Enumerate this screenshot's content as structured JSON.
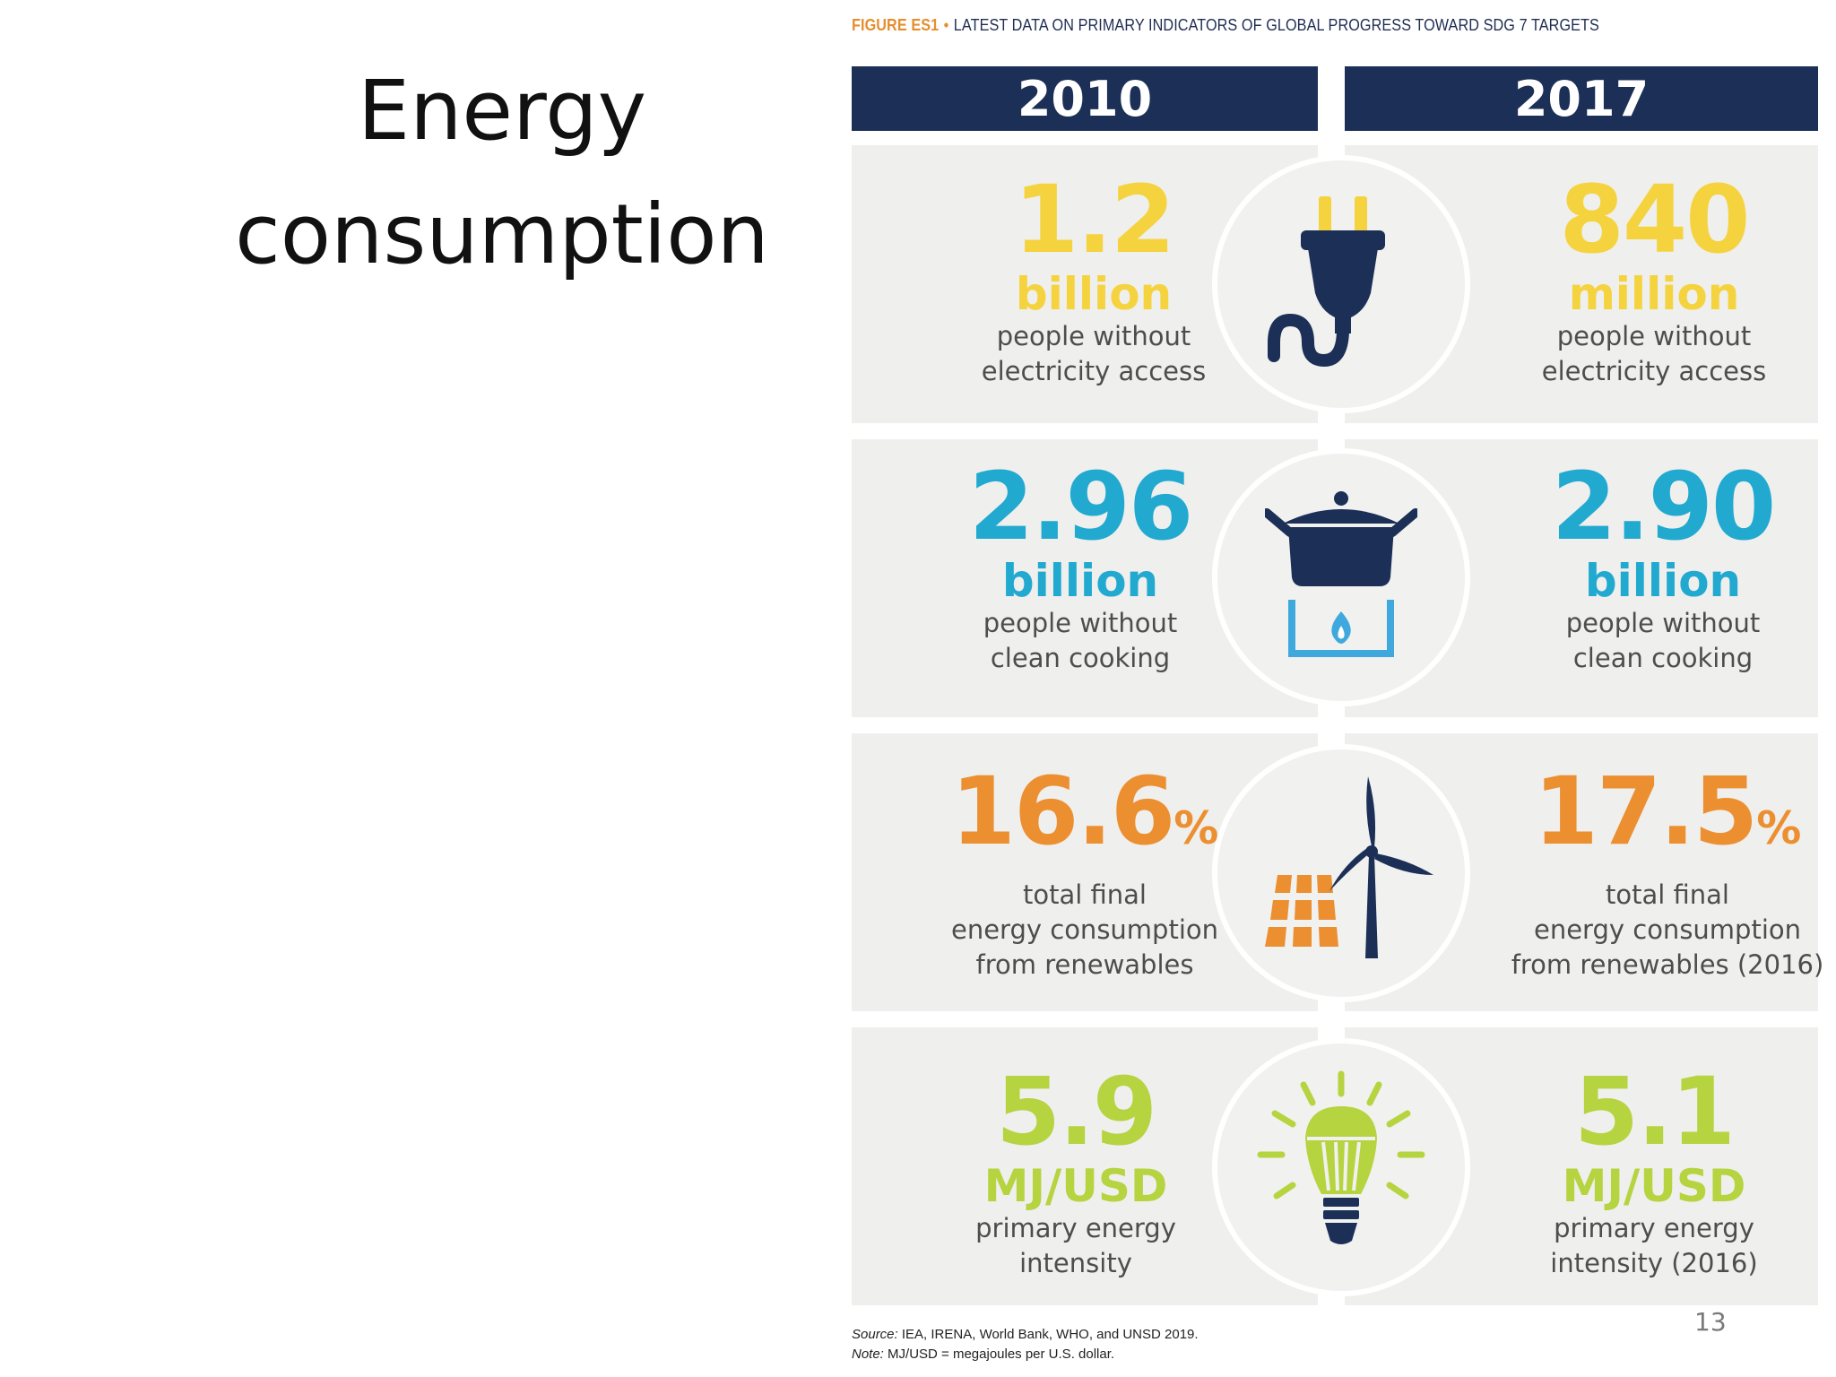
{
  "slide": {
    "title_line1": "Energy",
    "title_line2": "consumption",
    "page_number": "13"
  },
  "figure": {
    "label": "FIGURE ES1",
    "separator": "•",
    "title": "LATEST DATA ON PRIMARY INDICATORS OF GLOBAL PROGRESS TOWARD SDG 7 TARGETS",
    "years": {
      "left": "2010",
      "right": "2017"
    },
    "rows": [
      {
        "icon": "electric-plug-icon",
        "color": "#f4d33f",
        "left": {
          "value": "1.2",
          "unit": "billion",
          "desc1": "people without",
          "desc2": "electricity access",
          "desc3": ""
        },
        "right": {
          "value": "840",
          "unit": "million",
          "desc1": "people without",
          "desc2": "electricity access",
          "desc3": ""
        }
      },
      {
        "icon": "cooking-pot-stove-icon",
        "color": "#21a9d0",
        "left": {
          "value": "2.96",
          "unit": "billion",
          "desc1": "people without",
          "desc2": "clean cooking",
          "desc3": ""
        },
        "right": {
          "value": "2.90",
          "unit": "billion",
          "desc1": "people without",
          "desc2": "clean cooking",
          "desc3": ""
        }
      },
      {
        "icon": "solar-panel-wind-turbine-icon",
        "color": "#ec8f31",
        "left": {
          "value": "16.6",
          "unit": "%",
          "desc1": "total final",
          "desc2": "energy consumption",
          "desc3": "from renewables"
        },
        "right": {
          "value": "17.5",
          "unit": "%",
          "desc1": "total final",
          "desc2": "energy consumption",
          "desc3": "from renewables (2016)"
        }
      },
      {
        "icon": "light-bulb-icon",
        "color": "#b6d340",
        "left": {
          "value": "5.9",
          "unit": "MJ/USD",
          "desc1": "primary energy",
          "desc2": "intensity",
          "desc3": ""
        },
        "right": {
          "value": "5.1",
          "unit": "MJ/USD",
          "desc1": "primary energy",
          "desc2": "intensity (2016)",
          "desc3": ""
        }
      }
    ],
    "source_label": "Source:",
    "source_text": "IEA, IRENA, World Bank, WHO, and UNSD 2019.",
    "note_label": "Note:",
    "note_text": "MJ/USD = megajoules per U.S. dollar."
  }
}
